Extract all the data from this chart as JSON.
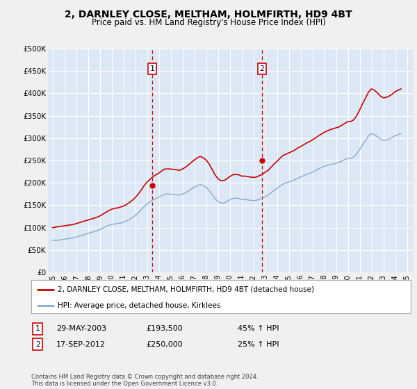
{
  "title": "2, DARNLEY CLOSE, MELTHAM, HOLMFIRTH, HD9 4BT",
  "subtitle": "Price paid vs. HM Land Registry's House Price Index (HPI)",
  "fig_bg_color": "#f0f0f0",
  "plot_bg_color": "#dce8f5",
  "ylim": [
    0,
    500000
  ],
  "yticks": [
    0,
    50000,
    100000,
    150000,
    200000,
    250000,
    300000,
    350000,
    400000,
    450000,
    500000
  ],
  "ytick_labels": [
    "£0",
    "£50K",
    "£100K",
    "£150K",
    "£200K",
    "£250K",
    "£300K",
    "£350K",
    "£400K",
    "£450K",
    "£500K"
  ],
  "xlim_start": 1994.6,
  "xlim_end": 2025.5,
  "xticks": [
    1995,
    1996,
    1997,
    1998,
    1999,
    2000,
    2001,
    2002,
    2003,
    2004,
    2005,
    2006,
    2007,
    2008,
    2009,
    2010,
    2011,
    2012,
    2013,
    2014,
    2015,
    2016,
    2017,
    2018,
    2019,
    2020,
    2021,
    2022,
    2023,
    2024,
    2025
  ],
  "sale1_x": 2003.41,
  "sale1_y": 193500,
  "sale1_label": "1",
  "sale1_date": "29-MAY-2003",
  "sale1_price": "£193,500",
  "sale1_hpi": "45% ↑ HPI",
  "sale2_x": 2012.71,
  "sale2_y": 250000,
  "sale2_label": "2",
  "sale2_date": "17-SEP-2012",
  "sale2_price": "£250,000",
  "sale2_hpi": "25% ↑ HPI",
  "red_line_color": "#cc0000",
  "blue_line_color": "#88aacc",
  "marker_color": "#cc0000",
  "vline_color": "#cc0000",
  "legend_label_red": "2, DARNLEY CLOSE, MELTHAM, HOLMFIRTH, HD9 4BT (detached house)",
  "legend_label_blue": "HPI: Average price, detached house, Kirklees",
  "footer_text": "Contains HM Land Registry data © Crown copyright and database right 2024.\nThis data is licensed under the Open Government Licence v3.0.",
  "hpi_data_x": [
    1995.0,
    1995.25,
    1995.5,
    1995.75,
    1996.0,
    1996.25,
    1996.5,
    1996.75,
    1997.0,
    1997.25,
    1997.5,
    1997.75,
    1998.0,
    1998.25,
    1998.5,
    1998.75,
    1999.0,
    1999.25,
    1999.5,
    1999.75,
    2000.0,
    2000.25,
    2000.5,
    2000.75,
    2001.0,
    2001.25,
    2001.5,
    2001.75,
    2002.0,
    2002.25,
    2002.5,
    2002.75,
    2003.0,
    2003.25,
    2003.5,
    2003.75,
    2004.0,
    2004.25,
    2004.5,
    2004.75,
    2005.0,
    2005.25,
    2005.5,
    2005.75,
    2006.0,
    2006.25,
    2006.5,
    2006.75,
    2007.0,
    2007.25,
    2007.5,
    2007.75,
    2008.0,
    2008.25,
    2008.5,
    2008.75,
    2009.0,
    2009.25,
    2009.5,
    2009.75,
    2010.0,
    2010.25,
    2010.5,
    2010.75,
    2011.0,
    2011.25,
    2011.5,
    2011.75,
    2012.0,
    2012.25,
    2012.5,
    2012.75,
    2013.0,
    2013.25,
    2013.5,
    2013.75,
    2014.0,
    2014.25,
    2014.5,
    2014.75,
    2015.0,
    2015.25,
    2015.5,
    2015.75,
    2016.0,
    2016.25,
    2016.5,
    2016.75,
    2017.0,
    2017.25,
    2017.5,
    2017.75,
    2018.0,
    2018.25,
    2018.5,
    2018.75,
    2019.0,
    2019.25,
    2019.5,
    2019.75,
    2020.0,
    2020.25,
    2020.5,
    2020.75,
    2021.0,
    2021.25,
    2021.5,
    2021.75,
    2022.0,
    2022.25,
    2022.5,
    2022.75,
    2023.0,
    2023.25,
    2023.5,
    2023.75,
    2024.0,
    2024.25,
    2024.5
  ],
  "hpi_data_y": [
    72000,
    71000,
    72000,
    73000,
    74000,
    75000,
    76000,
    77000,
    79000,
    81000,
    83000,
    85000,
    87000,
    89000,
    91000,
    93000,
    96000,
    99000,
    102000,
    105000,
    107000,
    108000,
    109000,
    110000,
    112000,
    115000,
    118000,
    122000,
    127000,
    133000,
    140000,
    147000,
    153000,
    158000,
    162000,
    165000,
    168000,
    172000,
    175000,
    175000,
    175000,
    174000,
    173000,
    173000,
    175000,
    178000,
    182000,
    186000,
    190000,
    194000,
    196000,
    194000,
    190000,
    183000,
    174000,
    165000,
    158000,
    155000,
    155000,
    158000,
    162000,
    165000,
    166000,
    165000,
    163000,
    163000,
    162000,
    161000,
    160000,
    161000,
    163000,
    166000,
    169000,
    173000,
    178000,
    183000,
    188000,
    193000,
    197000,
    200000,
    202000,
    204000,
    207000,
    210000,
    213000,
    216000,
    219000,
    221000,
    224000,
    227000,
    231000,
    234000,
    237000,
    239000,
    241000,
    242000,
    244000,
    246000,
    249000,
    252000,
    255000,
    255000,
    258000,
    265000,
    275000,
    285000,
    295000,
    305000,
    310000,
    308000,
    303000,
    298000,
    295000,
    296000,
    298000,
    301000,
    305000,
    308000,
    310000
  ],
  "property_data_x": [
    1995.0,
    1995.25,
    1995.5,
    1995.75,
    1996.0,
    1996.25,
    1996.5,
    1996.75,
    1997.0,
    1997.25,
    1997.5,
    1997.75,
    1998.0,
    1998.25,
    1998.5,
    1998.75,
    1999.0,
    1999.25,
    1999.5,
    1999.75,
    2000.0,
    2000.25,
    2000.5,
    2000.75,
    2001.0,
    2001.25,
    2001.5,
    2001.75,
    2002.0,
    2002.25,
    2002.5,
    2002.75,
    2003.0,
    2003.25,
    2003.5,
    2003.75,
    2004.0,
    2004.25,
    2004.5,
    2004.75,
    2005.0,
    2005.25,
    2005.5,
    2005.75,
    2006.0,
    2006.25,
    2006.5,
    2006.75,
    2007.0,
    2007.25,
    2007.5,
    2007.75,
    2008.0,
    2008.25,
    2008.5,
    2008.75,
    2009.0,
    2009.25,
    2009.5,
    2009.75,
    2010.0,
    2010.25,
    2010.5,
    2010.75,
    2011.0,
    2011.25,
    2011.5,
    2011.75,
    2012.0,
    2012.25,
    2012.5,
    2012.75,
    2013.0,
    2013.25,
    2013.5,
    2013.75,
    2014.0,
    2014.25,
    2014.5,
    2014.75,
    2015.0,
    2015.25,
    2015.5,
    2015.75,
    2016.0,
    2016.25,
    2016.5,
    2016.75,
    2017.0,
    2017.25,
    2017.5,
    2017.75,
    2018.0,
    2018.25,
    2018.5,
    2018.75,
    2019.0,
    2019.25,
    2019.5,
    2019.75,
    2020.0,
    2020.25,
    2020.5,
    2020.75,
    2021.0,
    2021.25,
    2021.5,
    2021.75,
    2022.0,
    2022.25,
    2022.5,
    2022.75,
    2023.0,
    2023.25,
    2023.5,
    2023.75,
    2024.0,
    2024.25,
    2024.5
  ],
  "property_data_y": [
    100000,
    101000,
    102000,
    103000,
    104000,
    105000,
    106000,
    107000,
    109000,
    111000,
    113000,
    115000,
    117000,
    119000,
    121000,
    123000,
    126000,
    130000,
    134000,
    138000,
    141000,
    143000,
    144000,
    146000,
    148000,
    152000,
    156000,
    161000,
    167000,
    175000,
    184000,
    194000,
    202000,
    208000,
    214000,
    218000,
    222000,
    227000,
    231000,
    231000,
    231000,
    230000,
    229000,
    228000,
    231000,
    235000,
    240000,
    246000,
    251000,
    256000,
    259000,
    256000,
    251000,
    242000,
    230000,
    218000,
    209000,
    205000,
    205000,
    209000,
    214000,
    218000,
    219000,
    218000,
    215000,
    215000,
    214000,
    213000,
    212000,
    213000,
    216000,
    219000,
    224000,
    228000,
    235000,
    242000,
    248000,
    255000,
    261000,
    264000,
    267000,
    270000,
    273000,
    278000,
    281000,
    285000,
    289000,
    292000,
    296000,
    300000,
    305000,
    309000,
    313000,
    316000,
    319000,
    321000,
    323000,
    325000,
    329000,
    333000,
    337000,
    337000,
    341000,
    350000,
    363000,
    377000,
    390000,
    403000,
    410000,
    407000,
    401000,
    394000,
    390000,
    391000,
    394000,
    398000,
    404000,
    407000,
    410000
  ]
}
